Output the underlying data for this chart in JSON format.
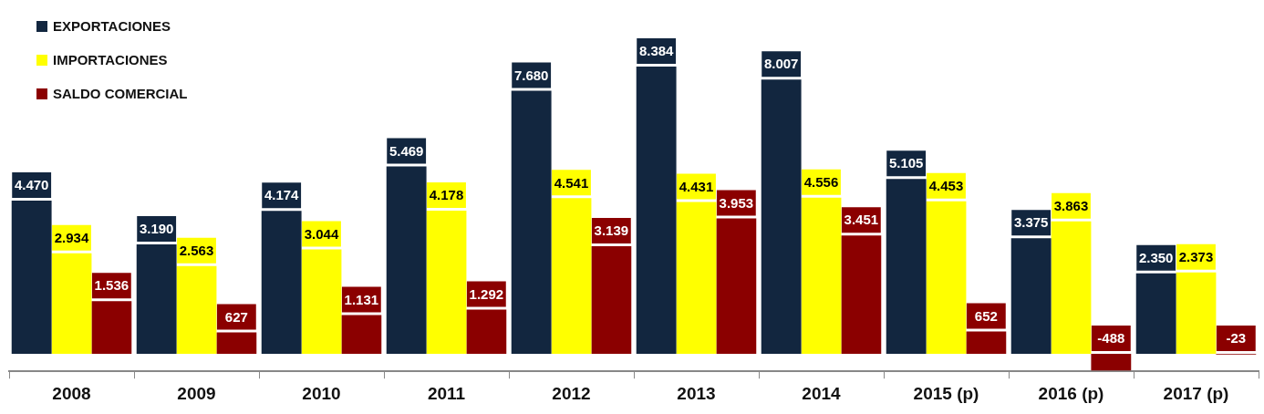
{
  "chart_data": {
    "type": "bar",
    "categories": [
      "2008",
      "2009",
      "2010",
      "2011",
      "2012",
      "2013",
      "2014",
      "2015 (p)",
      "2016 (p)",
      "2017 (p)"
    ],
    "series": [
      {
        "name": "EXPORTACIONES",
        "color": "#12263f",
        "values": [
          4470,
          3190,
          4174,
          5469,
          7680,
          8384,
          8007,
          5105,
          3375,
          2350
        ],
        "value_labels": [
          "4.470",
          "3.190",
          "4.174",
          "5.469",
          "7.680",
          "8.384",
          "8.007",
          "5.105",
          "3.375",
          "2.350"
        ]
      },
      {
        "name": "IMPORTACIONES",
        "color": "#ffff00",
        "values": [
          2934,
          2563,
          3044,
          4178,
          4541,
          4431,
          4556,
          4453,
          3863,
          2373
        ],
        "value_labels": [
          "2.934",
          "2.563",
          "3.044",
          "4.178",
          "4.541",
          "4.431",
          "4.556",
          "4.453",
          "3.863",
          "2.373"
        ]
      },
      {
        "name": "SALDO COMERCIAL",
        "color": "#8b0000",
        "values": [
          1536,
          627,
          1131,
          1292,
          3139,
          3953,
          3451,
          652,
          -488,
          -23
        ],
        "value_labels": [
          "1.536",
          "627",
          "1.131",
          "1.292",
          "3.139",
          "3.953",
          "3.451",
          "652",
          "-488",
          "-23"
        ]
      }
    ],
    "legend": "top left",
    "grid": false
  }
}
